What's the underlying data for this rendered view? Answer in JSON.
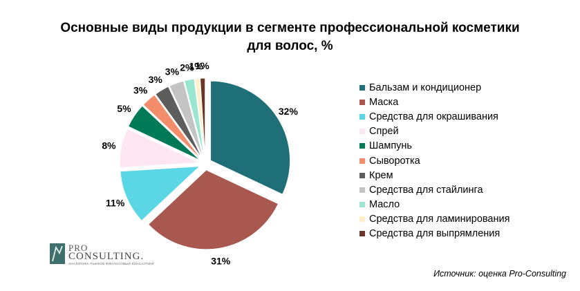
{
  "chart_data": {
    "type": "pie",
    "title": "Основные виды продукции в сегменте профессиональной косметики\nдля волос, %",
    "unit": "%",
    "label_format": "{v}%",
    "legend_position": "right",
    "exploded": true,
    "slices": [
      {
        "name": "Бальзам и кондиционер",
        "value": 32,
        "color": "#1e6f78"
      },
      {
        "name": "Маска",
        "value": 31,
        "color": "#a8584f"
      },
      {
        "name": "Средства для окрашивания",
        "value": 11,
        "color": "#5ad6e4"
      },
      {
        "name": "Спрей",
        "value": 8,
        "color": "#fde6f1"
      },
      {
        "name": "Шампунь",
        "value": 5,
        "color": "#007a57"
      },
      {
        "name": "Сыворотка",
        "value": 3,
        "color": "#f48d6c"
      },
      {
        "name": "Крем",
        "value": 3,
        "color": "#5d5d5d"
      },
      {
        "name": "Средства для стайлинга",
        "value": 3,
        "color": "#c4c4c4"
      },
      {
        "name": "Масло",
        "value": 2,
        "color": "#9ae6d0"
      },
      {
        "name": "Средства для ламинирования",
        "value": 1,
        "color": "#fff0c8"
      },
      {
        "name": "Средства для выпрямления",
        "value": 1,
        "color": "#6b3527"
      }
    ]
  },
  "logo": {
    "top": "PRO",
    "brand": "CONSULTING.",
    "tagline": "АНАЛИТИКА РЫНКОВ  ФИНАНСОВЫЙ КОНСАЛТИНГ"
  },
  "source": "Источник: оценка Pro-Consulting"
}
